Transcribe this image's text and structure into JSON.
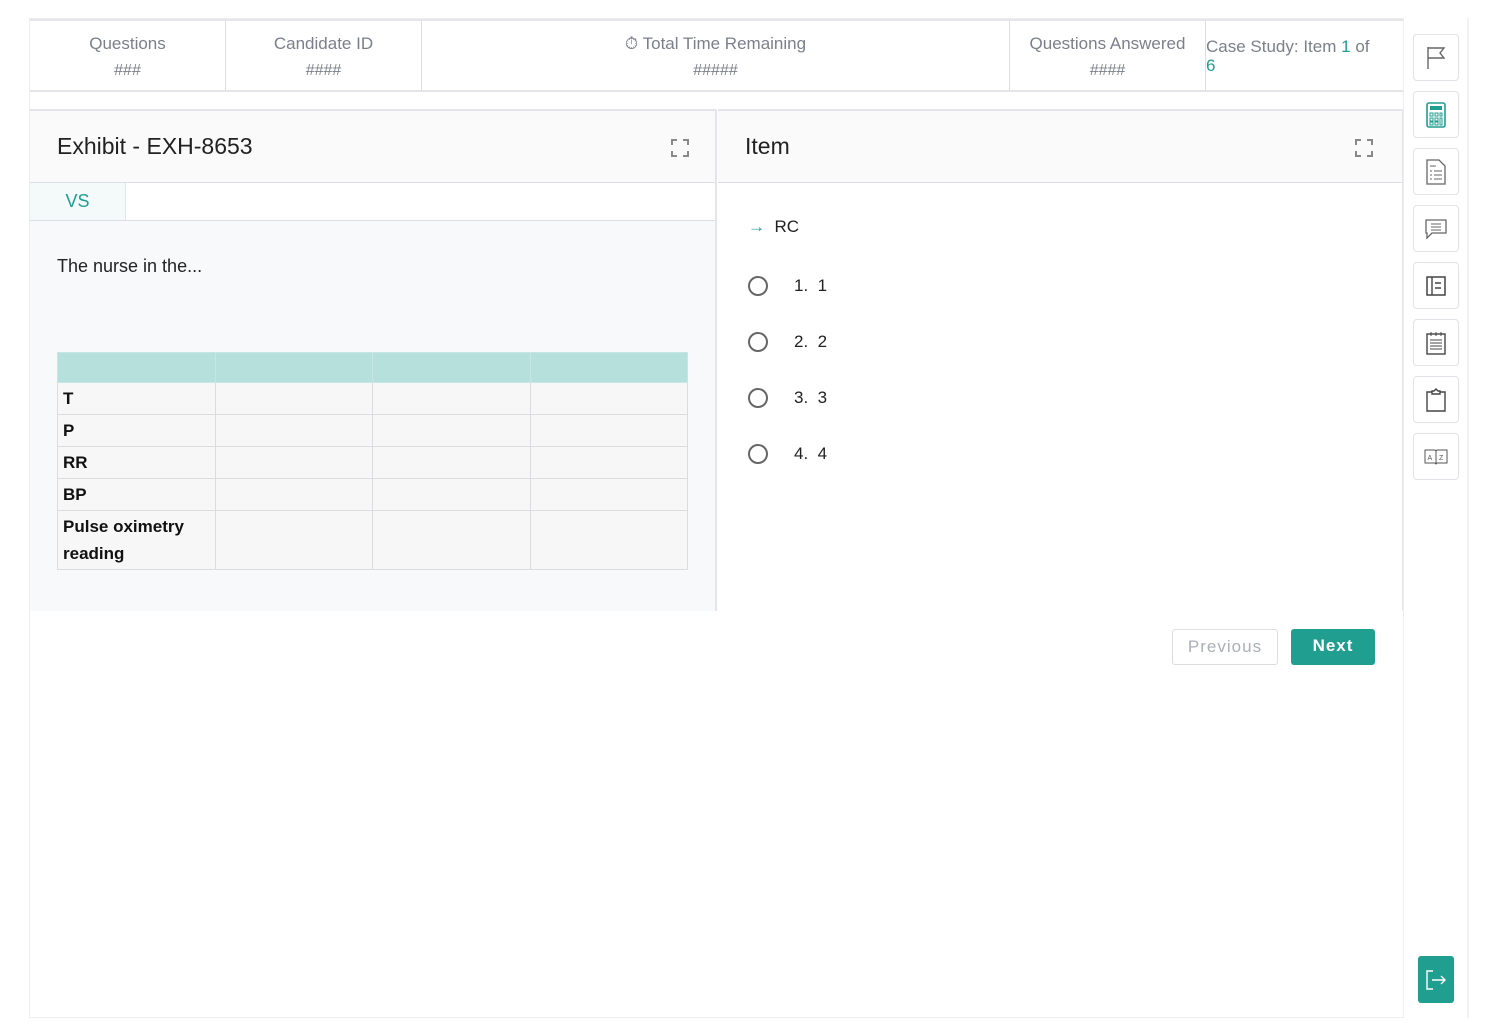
{
  "header": {
    "questions_label": "Questions",
    "questions_value": "###",
    "candidate_label": "Candidate ID",
    "candidate_value": "####",
    "time_label": "Total Time Remaining",
    "time_value": "#####",
    "answered_label": "Questions Answered",
    "answered_value": "####",
    "case_prefix": "Case Study: Item ",
    "case_current": "1",
    "case_of": " of",
    "case_total": "6"
  },
  "exhibit": {
    "title": "Exhibit - EXH-8653",
    "tab": "VS",
    "text": "The nurse in the...",
    "table_rows": [
      "T",
      "P",
      "RR",
      "BP",
      "Pulse oximetry reading"
    ]
  },
  "item": {
    "title": "Item",
    "prompt": "RC",
    "options": [
      {
        "num": "1.",
        "label": "1"
      },
      {
        "num": "2.",
        "label": "2"
      },
      {
        "num": "3.",
        "label": "3"
      },
      {
        "num": "4.",
        "label": "4"
      }
    ]
  },
  "nav": {
    "previous": "Previous",
    "next": "Next"
  },
  "sidebar": {
    "tools": [
      "flag-icon",
      "calculator-icon",
      "form-list-icon",
      "comment-icon",
      "notes-panel-icon",
      "notepad-icon",
      "clipboard-icon",
      "dictionary-icon"
    ],
    "exit": "exit-icon"
  },
  "colors": {
    "accent": "#209e90",
    "table_header": "#b5e0dc"
  }
}
